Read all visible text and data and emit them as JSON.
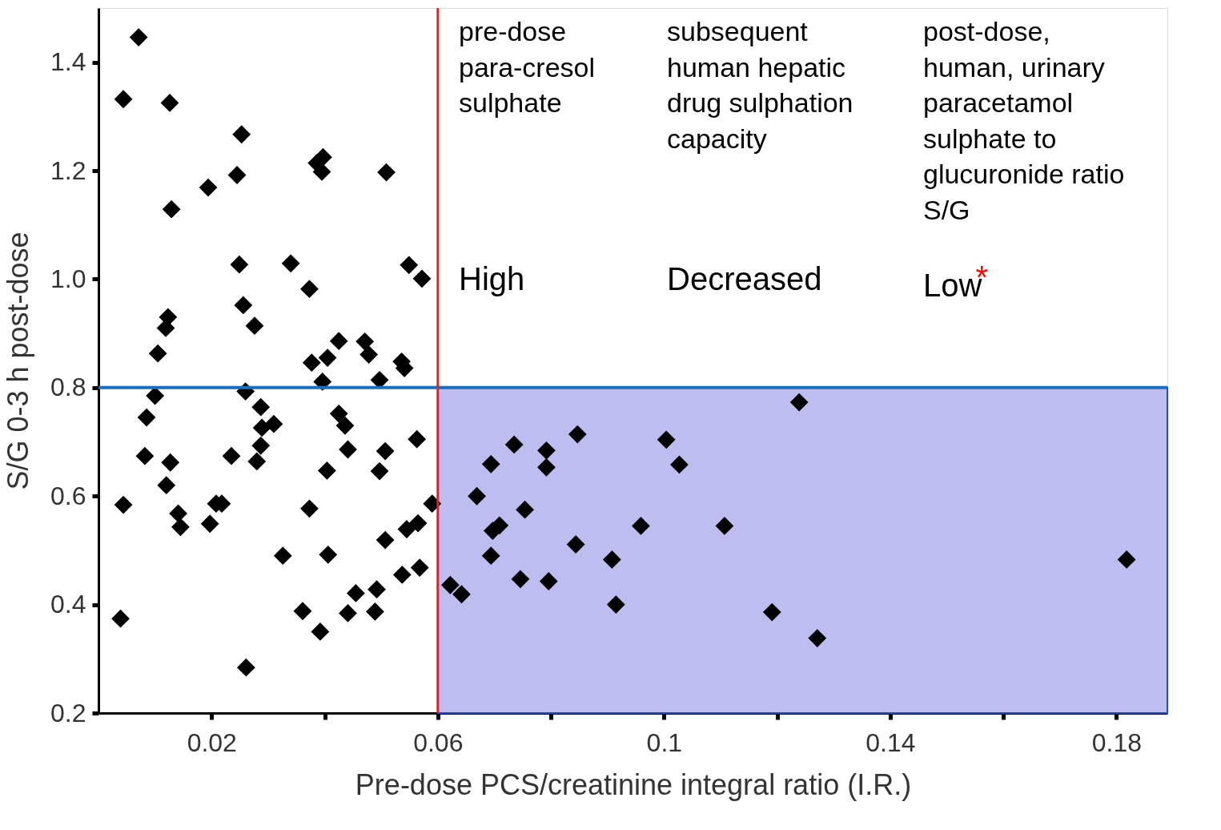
{
  "chart_data": {
    "type": "scatter",
    "xlabel": "Pre-dose PCS/creatinine integral ratio (I.R.)",
    "ylabel": "S/G 0-3 h post-dose",
    "xlim": [
      0,
      0.189
    ],
    "ylim": [
      0.2,
      1.5
    ],
    "xticks": [
      0.02,
      {
        "value": 0.04,
        "label": null
      },
      0.06,
      {
        "value": 0.08,
        "label": null
      },
      0.1,
      {
        "value": 0.12,
        "label": null
      },
      0.14,
      {
        "value": 0.16,
        "label": null
      },
      0.18
    ],
    "yticks": [
      0.2,
      0.4,
      0.6,
      0.8,
      {
        "value": 1,
        "label": "1.0"
      },
      1.2,
      1.4
    ],
    "grid": false,
    "marker": "diamond",
    "series": [
      {
        "color": "#000000",
        "x": [
          0.0071,
          0.0044,
          0.0126,
          0.0253,
          0.0245,
          0.0194,
          0.0129,
          0.0386,
          0.0397,
          0.0395,
          0.0509,
          0.0249,
          0.034,
          0.0373,
          0.0549,
          0.0572,
          0.0123,
          0.0119,
          0.0105,
          0.0256,
          0.0276,
          0.0377,
          0.0425,
          0.0405,
          0.0471,
          0.0478,
          0.0536,
          0.0541,
          0.0396,
          0.0497,
          0.01,
          0.026,
          0.0085,
          0.0082,
          0.0127,
          0.012,
          0.0044,
          0.0141,
          0.0145,
          0.0218,
          0.0208,
          0.0197,
          0.0235,
          0.0287,
          0.0289,
          0.031,
          0.0287,
          0.028,
          0.0326,
          0.0261,
          0.0039,
          0.0373,
          0.0361,
          0.0392,
          0.0406,
          0.0404,
          0.0425,
          0.0436,
          0.0441,
          0.0507,
          0.0497,
          0.0563,
          0.059,
          0.0565,
          0.0545,
          0.0507,
          0.0568,
          0.0537,
          0.0455,
          0.0492,
          0.0441,
          0.0489,
          0.1239,
          0.0735,
          0.0792,
          0.0847,
          0.1004,
          0.1027,
          0.0694,
          0.0792,
          0.0669,
          0.0754,
          0.0709,
          0.0697,
          0.0959,
          0.1107,
          0.0844,
          0.0694,
          0.0908,
          0.1818,
          0.0746,
          0.0796,
          0.0622,
          0.0642,
          0.0915,
          0.1191,
          0.1271
        ],
        "values": [
          1.446,
          1.332,
          1.325,
          1.267,
          1.192,
          1.169,
          1.129,
          1.214,
          1.225,
          1.198,
          1.197,
          1.027,
          1.029,
          0.982,
          1.026,
          1.001,
          0.93,
          0.91,
          0.863,
          0.952,
          0.914,
          0.846,
          0.886,
          0.855,
          0.885,
          0.861,
          0.848,
          0.836,
          0.811,
          0.814,
          0.785,
          0.793,
          0.745,
          0.674,
          0.662,
          0.62,
          0.584,
          0.568,
          0.543,
          0.586,
          0.586,
          0.549,
          0.674,
          0.764,
          0.726,
          0.733,
          0.693,
          0.664,
          0.49,
          0.284,
          0.374,
          0.577,
          0.388,
          0.35,
          0.492,
          0.647,
          0.752,
          0.73,
          0.686,
          0.683,
          0.646,
          0.705,
          0.586,
          0.55,
          0.539,
          0.519,
          0.468,
          0.455,
          0.421,
          0.428,
          0.384,
          0.387,
          0.773,
          0.695,
          0.684,
          0.714,
          0.704,
          0.658,
          0.659,
          0.653,
          0.6,
          0.575,
          0.546,
          0.536,
          0.545,
          0.545,
          0.511,
          0.49,
          0.483,
          0.483,
          0.447,
          0.443,
          0.436,
          0.419,
          0.4,
          0.386,
          0.338
        ]
      }
    ],
    "ref_lines": [
      {
        "axis": "y",
        "value": 0.8,
        "color": "#1a6fc0"
      },
      {
        "axis": "x",
        "value": 0.06,
        "color": "#ee1c24"
      }
    ],
    "bands": [
      {
        "axis": "x",
        "from": 0.06,
        "to": 0.189,
        "color": "#bdbdf0"
      }
    ],
    "annotations": [
      "pre-dose\npara-cresol\nsulphate",
      "subsequent\nhuman hepatic\ndrug sulphation\ncapacity",
      "post-dose,\nhuman, urinary\nparacetamol\nsulphate to\nglucuronide ratio\nS/G",
      "High",
      "Decreased",
      "Low*"
    ]
  }
}
